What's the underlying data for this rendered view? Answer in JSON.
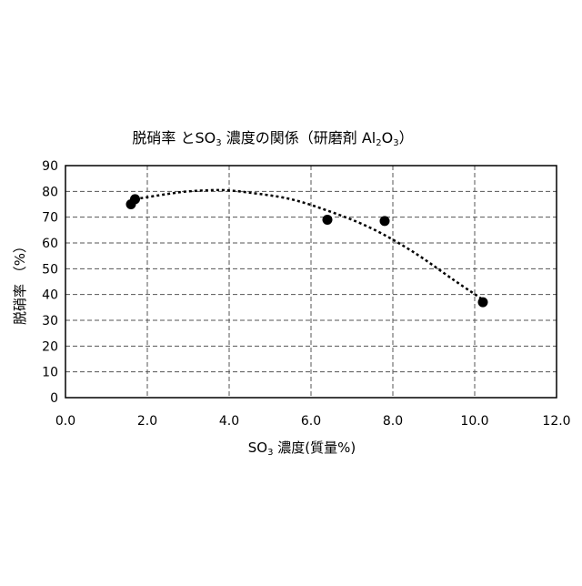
{
  "chart_data": {
    "type": "scatter",
    "title": {
      "prefix": "脱硝率 とSO",
      "sub1": "3",
      "middle": " 濃度の関係（研磨剤 Al",
      "sub2": "2",
      "middle2": "O",
      "sub3": "3",
      "suffix": "）"
    },
    "xlabel": {
      "prefix": "SO",
      "sub": "3",
      "suffix": " 濃度(質量%)"
    },
    "ylabel": "脱硝率 （%）",
    "xlim": [
      0,
      12
    ],
    "ylim": [
      0,
      90
    ],
    "x_ticks": [
      "0.0",
      "2.0",
      "4.0",
      "6.0",
      "8.0",
      "10.0",
      "12.0"
    ],
    "y_ticks": [
      "0",
      "10",
      "20",
      "30",
      "40",
      "50",
      "60",
      "70",
      "80",
      "90"
    ],
    "grid": true,
    "legend": "none",
    "series": [
      {
        "style": "markers",
        "x": [
          1.6,
          1.7,
          6.4,
          7.8,
          10.2
        ],
        "y": [
          75,
          77,
          69,
          68.5,
          37
        ]
      },
      {
        "style": "dashed-trend",
        "x": [
          1.7,
          2.5,
          3.0,
          3.8,
          4.5,
          5.5,
          6.5,
          7.5,
          8.5,
          9.5,
          10.2
        ],
        "y": [
          77,
          79,
          80,
          80.5,
          79.5,
          77,
          72,
          65.5,
          56.5,
          45.5,
          38
        ]
      }
    ],
    "colors": {
      "markers": "#000000",
      "trend": "#000000",
      "grid": "#555555",
      "frame": "#000000"
    }
  }
}
